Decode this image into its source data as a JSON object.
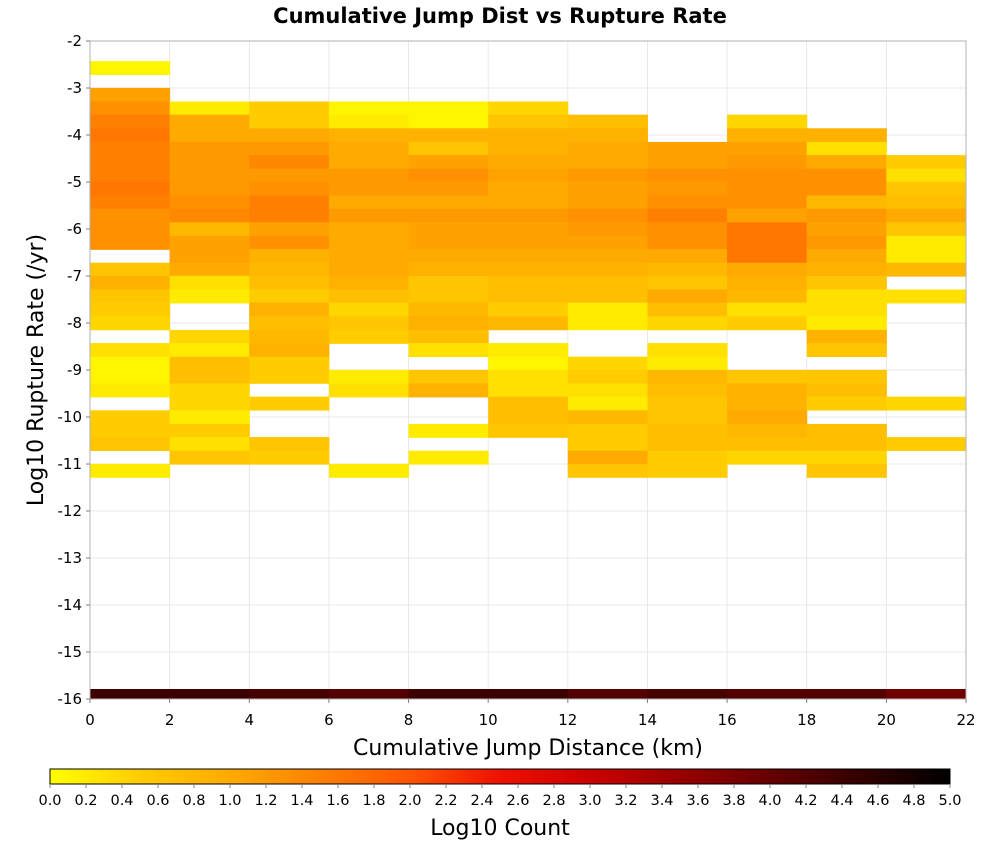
{
  "chart_data": {
    "type": "heatmap",
    "title": "Cumulative Jump Dist vs Rupture Rate",
    "xlabel": "Cumulative Jump Distance (km)",
    "ylabel": "Log10 Rupture Rate (/yr)",
    "xlim": [
      0,
      22
    ],
    "ylim": [
      -16,
      -2
    ],
    "x_ticks": [
      "0",
      "2",
      "4",
      "6",
      "8",
      "10",
      "12",
      "14",
      "16",
      "18",
      "20",
      "22"
    ],
    "y_ticks": [
      "-2",
      "-3",
      "-4",
      "-5",
      "-6",
      "-7",
      "-8",
      "-9",
      "-10",
      "-11",
      "-12",
      "-13",
      "-14",
      "-15",
      "-16"
    ],
    "x_bin_width": 2,
    "y_bin_height": 0.2857,
    "colorbar": {
      "label": "Log10 Count",
      "range": [
        0,
        5
      ],
      "ticks": [
        "0.0",
        "0.2",
        "0.4",
        "0.6",
        "0.8",
        "1.0",
        "1.2",
        "1.4",
        "1.6",
        "1.8",
        "2.0",
        "2.2",
        "2.4",
        "2.6",
        "2.8",
        "3.0",
        "3.2",
        "3.4",
        "3.6",
        "3.8",
        "4.0",
        "4.2",
        "4.4",
        "4.6",
        "4.8",
        "5.0"
      ],
      "color_stops": [
        {
          "v": 0.0,
          "color": "#ffff00"
        },
        {
          "v": 0.5,
          "color": "#ffcc00"
        },
        {
          "v": 1.0,
          "color": "#ffaa00"
        },
        {
          "v": 1.5,
          "color": "#ff8000"
        },
        {
          "v": 2.0,
          "color": "#ff5500"
        },
        {
          "v": 2.5,
          "color": "#ee1100"
        },
        {
          "v": 3.0,
          "color": "#cc0000"
        },
        {
          "v": 3.5,
          "color": "#990000"
        },
        {
          "v": 4.0,
          "color": "#660000"
        },
        {
          "v": 4.5,
          "color": "#330000"
        },
        {
          "v": 5.0,
          "color": "#000000"
        }
      ]
    },
    "columns": [
      {
        "x": 0,
        "cells": [
          [
            -2.57,
            0.1
          ],
          [
            -3.14,
            1.1
          ],
          [
            -3.43,
            1.3
          ],
          [
            -3.71,
            1.5
          ],
          [
            -4.0,
            1.6
          ],
          [
            -4.29,
            1.5
          ],
          [
            -4.57,
            1.5
          ],
          [
            -4.86,
            1.5
          ],
          [
            -5.14,
            1.6
          ],
          [
            -5.43,
            1.5
          ],
          [
            -5.71,
            1.3
          ],
          [
            -6.0,
            1.3
          ],
          [
            -6.29,
            1.3
          ],
          [
            -6.86,
            0.6
          ],
          [
            -7.14,
            0.9
          ],
          [
            -7.43,
            0.6
          ],
          [
            -7.71,
            0.5
          ],
          [
            -8.0,
            0.4
          ],
          [
            -8.57,
            0.3
          ],
          [
            -8.86,
            0.1
          ],
          [
            -9.14,
            0.1
          ],
          [
            -9.43,
            0.2
          ],
          [
            -10.0,
            0.5
          ],
          [
            -10.29,
            0.5
          ],
          [
            -10.57,
            0.6
          ],
          [
            -11.14,
            0.2
          ]
        ]
      },
      {
        "x": 2,
        "cells": [
          [
            -3.43,
            0.2
          ],
          [
            -3.71,
            1.0
          ],
          [
            -4.0,
            1.0
          ],
          [
            -4.29,
            1.2
          ],
          [
            -4.57,
            1.2
          ],
          [
            -4.86,
            1.2
          ],
          [
            -5.14,
            1.2
          ],
          [
            -5.43,
            1.3
          ],
          [
            -5.71,
            1.4
          ],
          [
            -6.0,
            0.8
          ],
          [
            -6.29,
            1.1
          ],
          [
            -6.57,
            1.1
          ],
          [
            -6.86,
            1.0
          ],
          [
            -7.14,
            0.3
          ],
          [
            -7.43,
            0.2
          ],
          [
            -8.29,
            0.4
          ],
          [
            -8.57,
            0.2
          ],
          [
            -8.86,
            0.7
          ],
          [
            -9.14,
            0.7
          ],
          [
            -9.43,
            0.4
          ],
          [
            -9.71,
            0.4
          ],
          [
            -10.0,
            0.2
          ],
          [
            -10.29,
            0.5
          ],
          [
            -10.57,
            0.3
          ],
          [
            -10.86,
            0.6
          ]
        ]
      },
      {
        "x": 4,
        "cells": [
          [
            -3.43,
            0.5
          ],
          [
            -3.71,
            0.5
          ],
          [
            -4.0,
            1.0
          ],
          [
            -4.29,
            1.2
          ],
          [
            -4.57,
            1.4
          ],
          [
            -4.86,
            1.2
          ],
          [
            -5.14,
            1.3
          ],
          [
            -5.43,
            1.5
          ],
          [
            -5.71,
            1.5
          ],
          [
            -6.0,
            1.1
          ],
          [
            -6.29,
            1.3
          ],
          [
            -6.57,
            0.9
          ],
          [
            -6.86,
            0.8
          ],
          [
            -7.14,
            0.7
          ],
          [
            -7.43,
            0.5
          ],
          [
            -7.71,
            0.9
          ],
          [
            -8.0,
            0.7
          ],
          [
            -8.29,
            0.8
          ],
          [
            -8.57,
            0.9
          ],
          [
            -8.86,
            0.5
          ],
          [
            -9.14,
            0.5
          ],
          [
            -9.71,
            0.5
          ],
          [
            -10.57,
            0.6
          ],
          [
            -10.86,
            0.5
          ]
        ]
      },
      {
        "x": 6,
        "cells": [
          [
            -3.43,
            0.1
          ],
          [
            -3.71,
            0.2
          ],
          [
            -4.0,
            0.9
          ],
          [
            -4.29,
            1.0
          ],
          [
            -4.57,
            1.0
          ],
          [
            -4.86,
            1.2
          ],
          [
            -5.14,
            1.2
          ],
          [
            -5.43,
            1.0
          ],
          [
            -5.71,
            1.2
          ],
          [
            -6.0,
            1.0
          ],
          [
            -6.29,
            1.0
          ],
          [
            -6.57,
            1.0
          ],
          [
            -6.86,
            1.0
          ],
          [
            -7.14,
            0.9
          ],
          [
            -7.43,
            0.7
          ],
          [
            -7.71,
            0.4
          ],
          [
            -8.0,
            0.6
          ],
          [
            -8.29,
            0.5
          ],
          [
            -9.14,
            0.2
          ],
          [
            -9.43,
            0.3
          ],
          [
            -11.14,
            0.2
          ]
        ]
      },
      {
        "x": 8,
        "cells": [
          [
            -3.43,
            0.1
          ],
          [
            -3.71,
            0.1
          ],
          [
            -4.0,
            0.9
          ],
          [
            -4.29,
            0.6
          ],
          [
            -4.57,
            1.1
          ],
          [
            -4.86,
            1.3
          ],
          [
            -5.14,
            1.2
          ],
          [
            -5.43,
            1.0
          ],
          [
            -5.71,
            1.2
          ],
          [
            -6.0,
            1.1
          ],
          [
            -6.29,
            1.1
          ],
          [
            -6.57,
            1.0
          ],
          [
            -6.86,
            0.9
          ],
          [
            -7.14,
            0.6
          ],
          [
            -7.43,
            0.6
          ],
          [
            -7.71,
            0.8
          ],
          [
            -8.0,
            0.9
          ],
          [
            -8.29,
            0.7
          ],
          [
            -8.57,
            0.3
          ],
          [
            -9.14,
            0.6
          ],
          [
            -9.43,
            0.9
          ],
          [
            -10.29,
            0.2
          ],
          [
            -10.86,
            0.2
          ]
        ]
      },
      {
        "x": 10,
        "cells": [
          [
            -3.43,
            0.4
          ],
          [
            -3.71,
            0.6
          ],
          [
            -4.0,
            0.9
          ],
          [
            -4.29,
            0.9
          ],
          [
            -4.57,
            1.0
          ],
          [
            -4.86,
            1.1
          ],
          [
            -5.14,
            1.0
          ],
          [
            -5.43,
            1.0
          ],
          [
            -5.71,
            1.2
          ],
          [
            -6.0,
            1.1
          ],
          [
            -6.29,
            1.1
          ],
          [
            -6.57,
            1.0
          ],
          [
            -6.86,
            0.9
          ],
          [
            -7.14,
            0.7
          ],
          [
            -7.43,
            0.7
          ],
          [
            -7.71,
            0.5
          ],
          [
            -8.0,
            0.8
          ],
          [
            -8.57,
            0.2
          ],
          [
            -8.86,
            0.1
          ],
          [
            -9.14,
            0.3
          ],
          [
            -9.43,
            0.3
          ],
          [
            -9.71,
            0.7
          ],
          [
            -10.0,
            0.7
          ],
          [
            -10.29,
            0.6
          ]
        ]
      },
      {
        "x": 12,
        "cells": [
          [
            -3.71,
            0.7
          ],
          [
            -4.0,
            0.9
          ],
          [
            -4.29,
            1.0
          ],
          [
            -4.57,
            1.0
          ],
          [
            -4.86,
            1.2
          ],
          [
            -5.14,
            1.1
          ],
          [
            -5.43,
            1.1
          ],
          [
            -5.71,
            1.3
          ],
          [
            -6.0,
            1.2
          ],
          [
            -6.29,
            1.1
          ],
          [
            -6.57,
            1.0
          ],
          [
            -6.86,
            0.9
          ],
          [
            -7.14,
            0.7
          ],
          [
            -7.43,
            0.7
          ],
          [
            -7.71,
            0.2
          ],
          [
            -8.0,
            0.2
          ],
          [
            -8.86,
            0.4
          ],
          [
            -9.14,
            0.5
          ],
          [
            -9.43,
            0.3
          ],
          [
            -9.71,
            0.2
          ],
          [
            -10.0,
            0.8
          ],
          [
            -10.29,
            0.5
          ],
          [
            -10.57,
            0.5
          ],
          [
            -10.86,
            1.0
          ],
          [
            -11.14,
            0.6
          ]
        ]
      },
      {
        "x": 14,
        "cells": [
          [
            -4.29,
            1.1
          ],
          [
            -4.57,
            1.1
          ],
          [
            -4.86,
            1.3
          ],
          [
            -5.14,
            1.2
          ],
          [
            -5.43,
            1.3
          ],
          [
            -5.71,
            1.5
          ],
          [
            -6.0,
            1.3
          ],
          [
            -6.29,
            1.3
          ],
          [
            -6.57,
            1.0
          ],
          [
            -6.86,
            0.8
          ],
          [
            -7.14,
            0.6
          ],
          [
            -7.43,
            1.0
          ],
          [
            -7.71,
            0.7
          ],
          [
            -8.0,
            0.4
          ],
          [
            -8.57,
            0.3
          ],
          [
            -8.86,
            0.2
          ],
          [
            -9.14,
            0.8
          ],
          [
            -9.43,
            0.7
          ],
          [
            -9.71,
            0.6
          ],
          [
            -10.0,
            0.6
          ],
          [
            -10.29,
            0.7
          ],
          [
            -10.57,
            0.7
          ],
          [
            -10.86,
            0.5
          ],
          [
            -11.14,
            0.5
          ]
        ]
      },
      {
        "x": 16,
        "cells": [
          [
            -3.71,
            0.4
          ],
          [
            -4.0,
            0.9
          ],
          [
            -4.29,
            1.1
          ],
          [
            -4.57,
            1.2
          ],
          [
            -4.86,
            1.3
          ],
          [
            -5.14,
            1.3
          ],
          [
            -5.43,
            1.3
          ],
          [
            -5.71,
            1.1
          ],
          [
            -6.0,
            1.6
          ],
          [
            -6.29,
            1.6
          ],
          [
            -6.57,
            1.6
          ],
          [
            -6.86,
            1.0
          ],
          [
            -7.14,
            0.9
          ],
          [
            -7.43,
            0.8
          ],
          [
            -7.71,
            0.3
          ],
          [
            -8.0,
            0.5
          ],
          [
            -9.14,
            0.6
          ],
          [
            -9.43,
            0.9
          ],
          [
            -9.71,
            0.9
          ],
          [
            -10.0,
            1.0
          ],
          [
            -10.29,
            0.8
          ],
          [
            -10.57,
            0.7
          ],
          [
            -10.86,
            0.4
          ]
        ]
      },
      {
        "x": 18,
        "cells": [
          [
            -4.0,
            0.9
          ],
          [
            -4.29,
            0.3
          ],
          [
            -4.57,
            1.0
          ],
          [
            -4.86,
            1.3
          ],
          [
            -5.14,
            1.3
          ],
          [
            -5.43,
            0.8
          ],
          [
            -5.71,
            1.2
          ],
          [
            -6.0,
            1.1
          ],
          [
            -6.29,
            1.2
          ],
          [
            -6.57,
            1.0
          ],
          [
            -6.86,
            0.9
          ],
          [
            -7.14,
            0.6
          ],
          [
            -7.43,
            0.3
          ],
          [
            -7.71,
            0.3
          ],
          [
            -8.0,
            0.2
          ],
          [
            -8.29,
            0.9
          ],
          [
            -8.57,
            0.6
          ],
          [
            -9.14,
            0.6
          ],
          [
            -9.43,
            0.7
          ],
          [
            -9.71,
            0.5
          ],
          [
            -10.29,
            0.7
          ],
          [
            -10.57,
            0.7
          ],
          [
            -10.86,
            0.4
          ],
          [
            -11.14,
            0.6
          ]
        ]
      },
      {
        "x": 20,
        "cells": [
          [
            -4.57,
            0.5
          ],
          [
            -4.86,
            0.3
          ],
          [
            -5.14,
            0.6
          ],
          [
            -5.43,
            0.7
          ],
          [
            -5.71,
            1.0
          ],
          [
            -6.0,
            0.6
          ],
          [
            -6.29,
            0.2
          ],
          [
            -6.57,
            0.2
          ],
          [
            -6.86,
            0.8
          ],
          [
            -7.43,
            0.3
          ],
          [
            -9.71,
            0.4
          ],
          [
            -10.57,
            0.5
          ]
        ]
      }
    ],
    "bottom_row": {
      "y": -15.93,
      "values": [
        4.4,
        4.4,
        4.3,
        4.2,
        4.4,
        4.4,
        4.2,
        4.3,
        4.2,
        4.2,
        3.9
      ]
    }
  }
}
